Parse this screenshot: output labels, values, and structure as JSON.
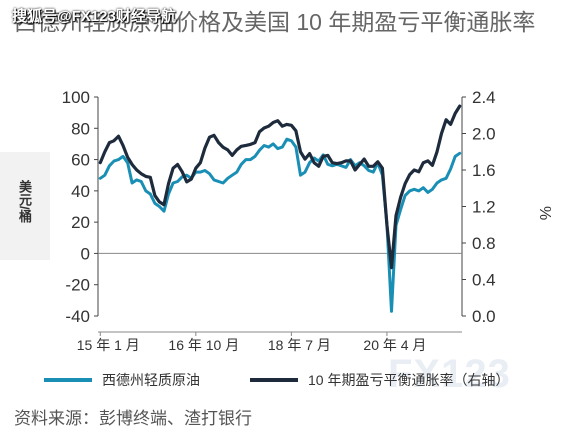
{
  "header": {
    "watermark": "搜狐号@FX123财经导航",
    "title": "西德州轻质原油价格及美国 10 年期盈亏平衡通胀率"
  },
  "footer": {
    "source": "资料来源：彭博终端、渣打银行",
    "watermark": "FX123"
  },
  "colors": {
    "wti": "#1a8fb5",
    "breakeven": "#1d2b3c",
    "axis_text": "#333333"
  },
  "chart_data": {
    "type": "line",
    "title": "西德州轻质原油价格及美国 10 年期盈亏平衡通胀率",
    "ylabel_left": "美元/桶",
    "ylabel_right": "%",
    "ylim_left": [
      -40,
      100
    ],
    "ylim_right": [
      0.0,
      2.4
    ],
    "yticks_left": [
      "100",
      "80",
      "60",
      "40",
      "20",
      "0",
      "-20",
      "-40"
    ],
    "yticks_right": [
      "2.4",
      "2.0",
      "1.6",
      "1.2",
      "0.8",
      "0.4",
      "0.0"
    ],
    "xticks": [
      "15 年 1 月",
      "16 年 10 月",
      "18 年 7 月",
      "20 年 4 月"
    ],
    "xtick_t": [
      0.0,
      21.0,
      42.0,
      63.0
    ],
    "x_range": [
      -0.5,
      79.5
    ],
    "legend_position": "bottom",
    "grid": false,
    "series": [
      {
        "name": "西德州轻质原油",
        "axis": "left",
        "x": [
          0,
          1,
          2,
          3,
          4,
          5,
          6,
          7,
          8,
          9,
          10,
          11,
          12,
          13,
          14,
          15,
          16,
          17,
          18,
          19,
          20,
          21,
          22,
          23,
          24,
          25,
          26,
          27,
          28,
          29,
          30,
          31,
          32,
          33,
          34,
          35,
          36,
          37,
          38,
          39,
          40,
          41,
          42,
          43,
          44,
          45,
          46,
          47,
          48,
          49,
          50,
          51,
          52,
          53,
          54,
          55,
          56,
          57,
          58,
          59,
          60,
          61,
          62,
          63,
          64,
          65,
          66,
          67,
          68,
          69,
          70,
          71,
          72,
          73,
          74,
          75,
          76,
          77,
          78,
          79
        ],
        "values": [
          48,
          50,
          56,
          59,
          60,
          62,
          58,
          45,
          47,
          46,
          40,
          38,
          32,
          30,
          27,
          38,
          45,
          46,
          49,
          50,
          48,
          52,
          52,
          53,
          51,
          47,
          46,
          45,
          48,
          50,
          52,
          57,
          60,
          60,
          62,
          66,
          69,
          68,
          70,
          67,
          68,
          73,
          72,
          68,
          50,
          52,
          58,
          61,
          59,
          63,
          57,
          56,
          57,
          56,
          55,
          60,
          56,
          58,
          56,
          53,
          52,
          58,
          50,
          19,
          -37,
          18,
          28,
          37,
          40,
          41,
          40,
          42,
          39,
          41,
          45,
          47,
          48,
          54,
          62,
          64
        ]
      },
      {
        "name": "10 年期盈亏平衡通胀率（右轴）",
        "axis": "right",
        "x": [
          0,
          1,
          2,
          3,
          4,
          5,
          6,
          7,
          8,
          9,
          10,
          11,
          12,
          13,
          14,
          15,
          16,
          17,
          18,
          19,
          20,
          21,
          22,
          23,
          24,
          25,
          26,
          27,
          28,
          29,
          30,
          31,
          32,
          33,
          34,
          35,
          36,
          37,
          38,
          39,
          40,
          41,
          42,
          43,
          44,
          45,
          46,
          47,
          48,
          49,
          50,
          51,
          52,
          53,
          54,
          55,
          56,
          57,
          58,
          59,
          60,
          61,
          62,
          63,
          64,
          65,
          66,
          67,
          68,
          69,
          70,
          71,
          72,
          73,
          74,
          75,
          76,
          77,
          78,
          79
        ],
        "values": [
          1.68,
          1.8,
          1.9,
          1.92,
          1.97,
          1.87,
          1.74,
          1.66,
          1.6,
          1.56,
          1.53,
          1.52,
          1.32,
          1.25,
          1.22,
          1.45,
          1.62,
          1.66,
          1.58,
          1.47,
          1.5,
          1.62,
          1.68,
          1.84,
          1.96,
          1.98,
          1.9,
          1.85,
          1.82,
          1.76,
          1.82,
          1.86,
          1.87,
          1.88,
          1.9,
          2.02,
          2.06,
          2.08,
          2.12,
          2.14,
          2.08,
          2.1,
          2.09,
          2.03,
          1.8,
          1.72,
          1.78,
          1.68,
          1.64,
          1.75,
          1.76,
          1.68,
          1.67,
          1.68,
          1.7,
          1.7,
          1.6,
          1.66,
          1.72,
          1.64,
          1.64,
          1.69,
          1.62,
          1.0,
          0.53,
          1.1,
          1.3,
          1.45,
          1.55,
          1.6,
          1.58,
          1.68,
          1.7,
          1.65,
          1.8,
          2.0,
          2.15,
          2.1,
          2.22,
          2.3
        ]
      }
    ]
  }
}
